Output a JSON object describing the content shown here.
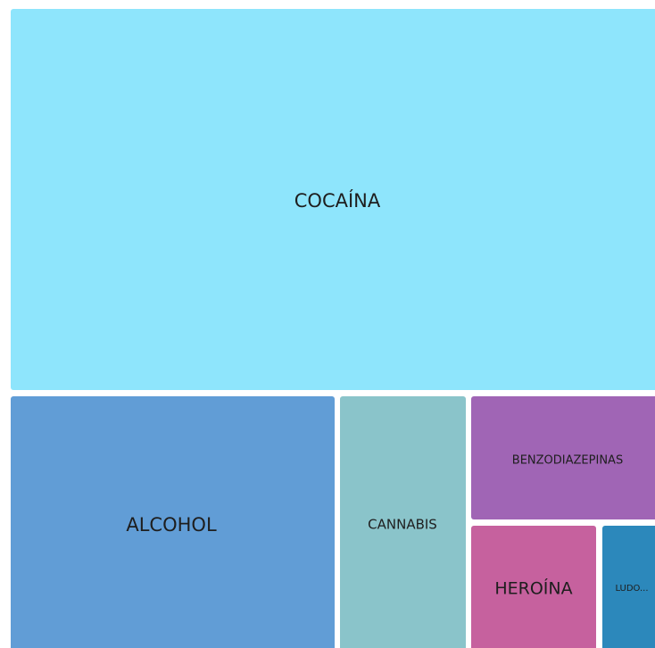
{
  "treemap": {
    "nodes": [
      {
        "label": "COCAÍNA"
      },
      {
        "label": "ALCOHOL"
      },
      {
        "label": "CANNABIS"
      },
      {
        "label": "BENZODIAZEPINAS"
      },
      {
        "label": "HEROÍNA"
      },
      {
        "label": "LUDO..."
      }
    ]
  }
}
